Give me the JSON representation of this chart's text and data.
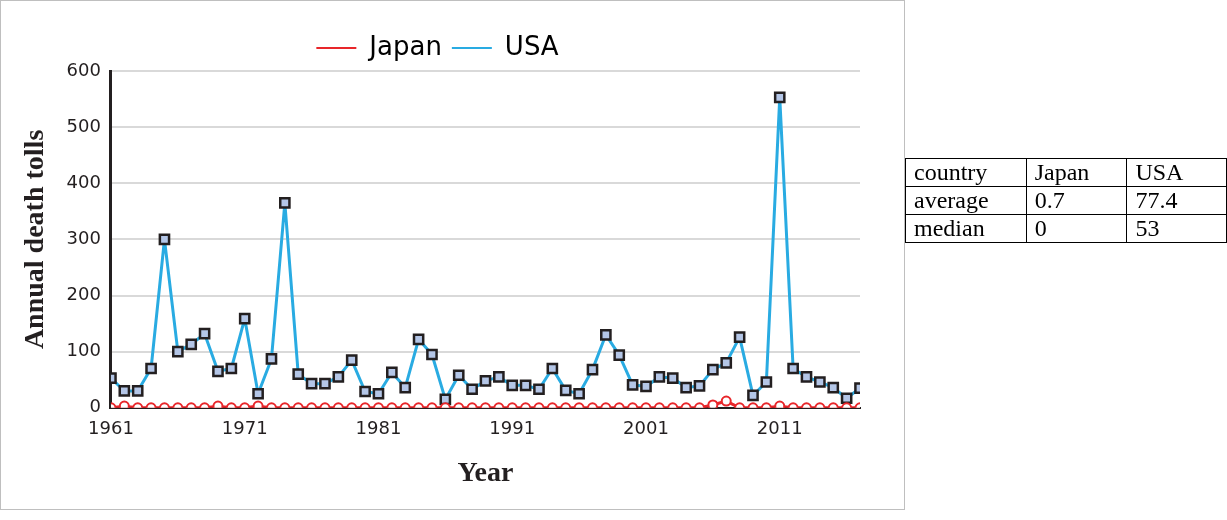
{
  "chart_data": [
    {
      "type": "line",
      "xlabel": "Year",
      "ylabel": "Annual death tolls",
      "x": [
        1961,
        1962,
        1963,
        1964,
        1965,
        1966,
        1967,
        1968,
        1969,
        1970,
        1971,
        1972,
        1973,
        1974,
        1975,
        1976,
        1977,
        1978,
        1979,
        1980,
        1981,
        1982,
        1983,
        1984,
        1985,
        1986,
        1987,
        1988,
        1989,
        1990,
        1991,
        1992,
        1993,
        1994,
        1995,
        1996,
        1997,
        1998,
        1999,
        2000,
        2001,
        2002,
        2003,
        2004,
        2005,
        2006,
        2007,
        2008,
        2009,
        2010,
        2011,
        2012,
        2013,
        2014,
        2015,
        2016,
        2017
      ],
      "series": [
        {
          "name": "Japan",
          "color": "#e8262a",
          "marker": "circle",
          "values": [
            0,
            3,
            0,
            0,
            0,
            0,
            0,
            0,
            3,
            0,
            0,
            3,
            0,
            0,
            0,
            0,
            0,
            0,
            0,
            0,
            0,
            0,
            0,
            0,
            0,
            0,
            0,
            0,
            0,
            0,
            0,
            0,
            0,
            0,
            0,
            0,
            0,
            0,
            0,
            0,
            0,
            0,
            0,
            0,
            0,
            5,
            12,
            0,
            0,
            0,
            3,
            0,
            0,
            0,
            0,
            0,
            0
          ]
        },
        {
          "name": "USA",
          "color": "#29abe2",
          "marker": "square",
          "values": [
            53,
            30,
            30,
            70,
            300,
            100,
            113,
            132,
            65,
            70,
            159,
            25,
            87,
            365,
            60,
            43,
            43,
            55,
            85,
            29,
            25,
            63,
            36,
            122,
            95,
            15,
            58,
            33,
            48,
            55,
            40,
            40,
            33,
            70,
            31,
            25,
            68,
            130,
            94,
            41,
            38,
            55,
            53,
            36,
            39,
            68,
            80,
            126,
            22,
            46,
            553,
            70,
            55,
            46,
            36,
            17,
            35
          ]
        }
      ],
      "xlim": [
        1961,
        2017
      ],
      "xticks": [
        1961,
        1971,
        1981,
        1991,
        2001,
        2011
      ],
      "ylim": [
        0,
        600
      ],
      "yticks": [
        0,
        100,
        200,
        300,
        400,
        500,
        600
      ],
      "grid": "y",
      "legend": "top",
      "line_style": "solid"
    },
    {
      "type": "other",
      "annotations": [
        "country",
        "Japan",
        "USA",
        "average",
        "0.7",
        "77.4",
        "median",
        "0",
        "53"
      ]
    }
  ]
}
